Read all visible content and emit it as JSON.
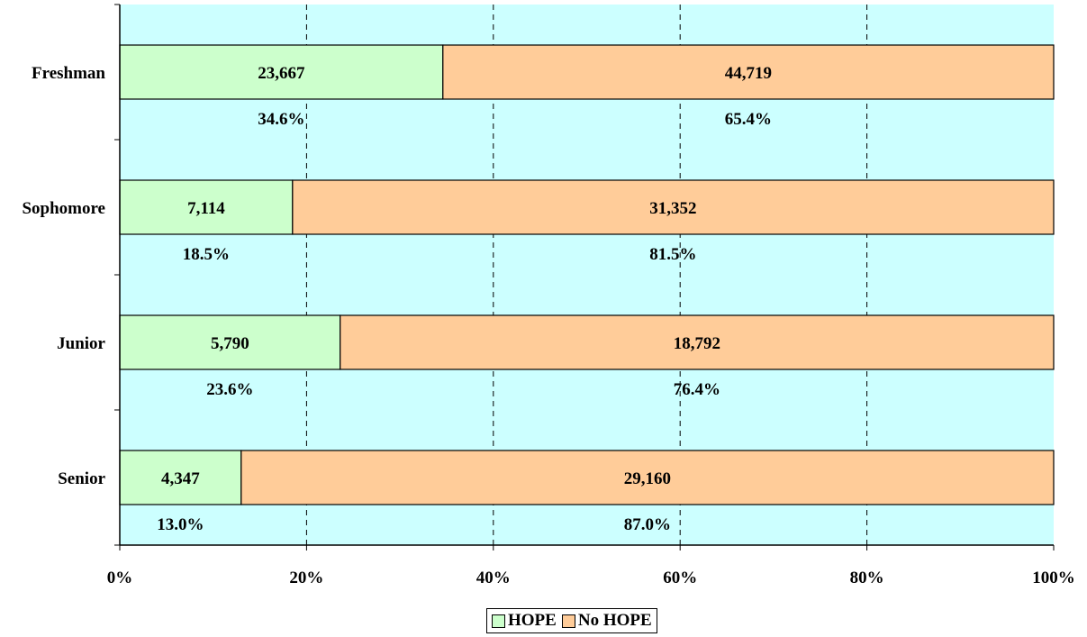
{
  "chart_data": {
    "type": "bar",
    "orientation": "horizontal",
    "stacked": "percent",
    "categories": [
      "Freshman",
      "Sophomore",
      "Junior",
      "Senior"
    ],
    "series": [
      {
        "name": "HOPE",
        "color": "#ccffcc",
        "values": [
          23667,
          7114,
          5790,
          4347
        ],
        "value_labels": [
          "23,667",
          "7,114",
          "5,790",
          "4,347"
        ],
        "percents": [
          34.6,
          18.5,
          23.6,
          13.0
        ],
        "percent_labels": [
          "34.6%",
          "18.5%",
          "23.6%",
          "13.0%"
        ]
      },
      {
        "name": "No HOPE",
        "color": "#ffcc99",
        "values": [
          44719,
          31352,
          18792,
          29160
        ],
        "value_labels": [
          "44,719",
          "31,352",
          "18,792",
          "29,160"
        ],
        "percents": [
          65.4,
          81.5,
          76.4,
          87.0
        ],
        "percent_labels": [
          "65.4%",
          "81.5%",
          "76.4%",
          "87.0%"
        ]
      }
    ],
    "xlim": [
      0,
      100
    ],
    "xticks": [
      "0%",
      "20%",
      "40%",
      "60%",
      "80%",
      "100%"
    ],
    "grid": "vertical-dashed",
    "plot_background": "#ccffff",
    "legend_position": "bottom"
  }
}
